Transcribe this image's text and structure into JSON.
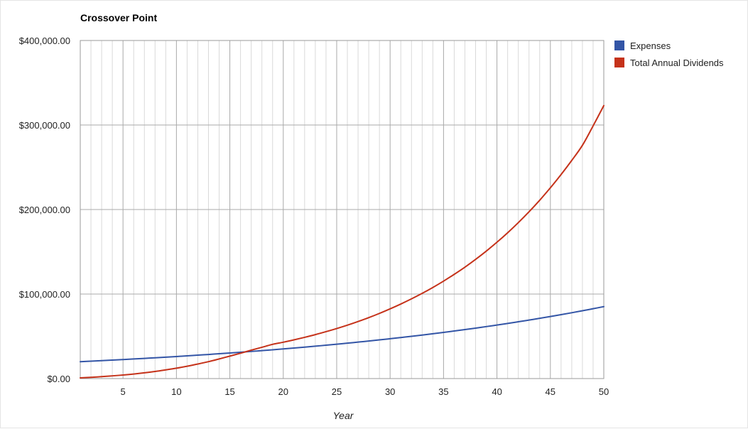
{
  "chart_data": {
    "type": "line",
    "title": "Crossover Point",
    "xlabel": "Year",
    "ylabel": "",
    "xlim": [
      1,
      50
    ],
    "ylim": [
      0,
      400000
    ],
    "x_ticks": [
      5,
      10,
      15,
      20,
      25,
      30,
      35,
      40,
      45,
      50
    ],
    "x_tick_labels": [
      "5",
      "10",
      "15",
      "20",
      "25",
      "30",
      "35",
      "40",
      "45",
      "50"
    ],
    "y_ticks": [
      0,
      100000,
      200000,
      300000,
      400000
    ],
    "y_tick_labels": [
      "$0.00",
      "$100,000.00",
      "$200,000.00",
      "$300,000.00",
      "$400,000.00"
    ],
    "grid": true,
    "legend_position": "right",
    "x": [
      1,
      2,
      3,
      4,
      5,
      6,
      7,
      8,
      9,
      10,
      11,
      12,
      13,
      14,
      15,
      16,
      17,
      18,
      19,
      20,
      21,
      22,
      23,
      24,
      25,
      26,
      27,
      28,
      29,
      30,
      31,
      32,
      33,
      34,
      35,
      36,
      37,
      38,
      39,
      40,
      41,
      42,
      43,
      44,
      45,
      46,
      47,
      48,
      49,
      50
    ],
    "series": [
      {
        "name": "Expenses",
        "color": "#3355a6",
        "values": [
          20000,
          20600,
          21218,
          21855,
          22510,
          23185,
          23881,
          24597,
          25335,
          26095,
          26878,
          27685,
          28515,
          29371,
          30252,
          31159,
          32094,
          33057,
          34049,
          35070,
          36122,
          37206,
          38322,
          39472,
          40656,
          41876,
          43132,
          44426,
          45759,
          47131,
          48545,
          50002,
          51502,
          53047,
          54638,
          56277,
          57966,
          59705,
          61496,
          63341,
          65241,
          67198,
          69214,
          71290,
          73429,
          75632,
          77901,
          80238,
          82645,
          85125
        ]
      },
      {
        "name": "Total Annual Dividends",
        "color": "#c5321a",
        "values": [
          800,
          1500,
          2300,
          3200,
          4200,
          5400,
          6800,
          8400,
          10300,
          12300,
          14600,
          17200,
          20000,
          23200,
          26600,
          30000,
          33600,
          37000,
          40500,
          43000,
          45800,
          48800,
          52000,
          55500,
          59200,
          63200,
          67500,
          72100,
          77100,
          82500,
          88200,
          94300,
          100800,
          107800,
          115300,
          123300,
          131800,
          141000,
          150800,
          161300,
          172500,
          184500,
          197300,
          211000,
          225700,
          241400,
          258100,
          276000,
          299000,
          323000
        ]
      }
    ]
  }
}
